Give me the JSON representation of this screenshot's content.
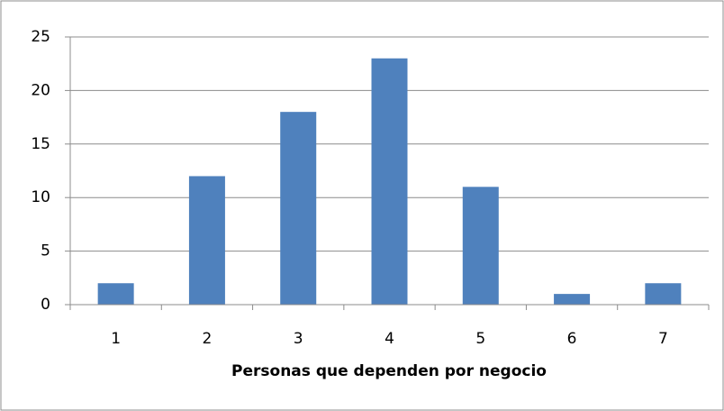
{
  "chart_data": {
    "type": "bar",
    "x_label": "Personas que dependen por negocio",
    "categories": [
      "1",
      "2",
      "3",
      "4",
      "5",
      "6",
      "7"
    ],
    "values": [
      2,
      12,
      18,
      23,
      11,
      1,
      2
    ],
    "color": "#4f81bd",
    "ylim": [
      0,
      25
    ],
    "yticks": [
      0,
      5,
      10,
      15,
      20,
      25
    ],
    "grid": true
  }
}
